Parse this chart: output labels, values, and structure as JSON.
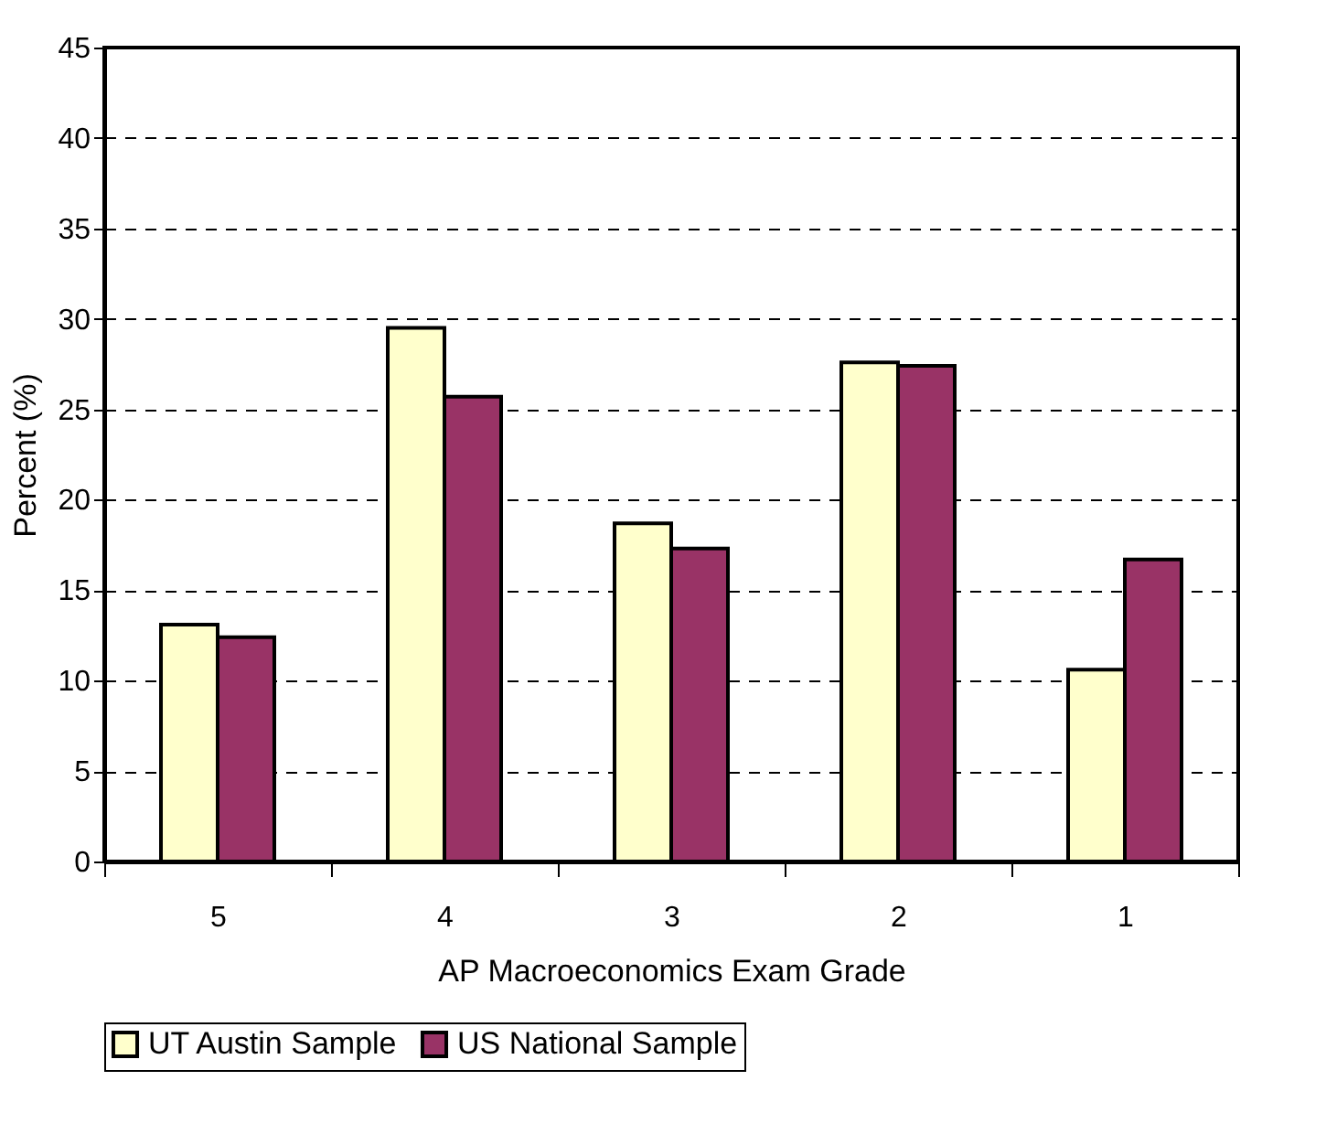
{
  "chart_data": {
    "type": "bar",
    "xlabel": "AP Macroeconomics Exam Grade",
    "ylabel": "Percent (%)",
    "categories": [
      "5",
      "4",
      "3",
      "2",
      "1"
    ],
    "series": [
      {
        "name": "UT Austin Sample",
        "color": "#ffffcc",
        "values": [
          13.1,
          29.5,
          18.7,
          27.6,
          10.6
        ]
      },
      {
        "name": "US National Sample",
        "color": "#993366",
        "values": [
          12.4,
          25.7,
          17.3,
          27.4,
          16.7
        ]
      }
    ],
    "ylim": [
      0,
      45
    ],
    "yticks": [
      0,
      5,
      10,
      15,
      20,
      25,
      30,
      35,
      40,
      45
    ],
    "grid": "y",
    "legend": "bottom",
    "line_style": "dashed"
  }
}
